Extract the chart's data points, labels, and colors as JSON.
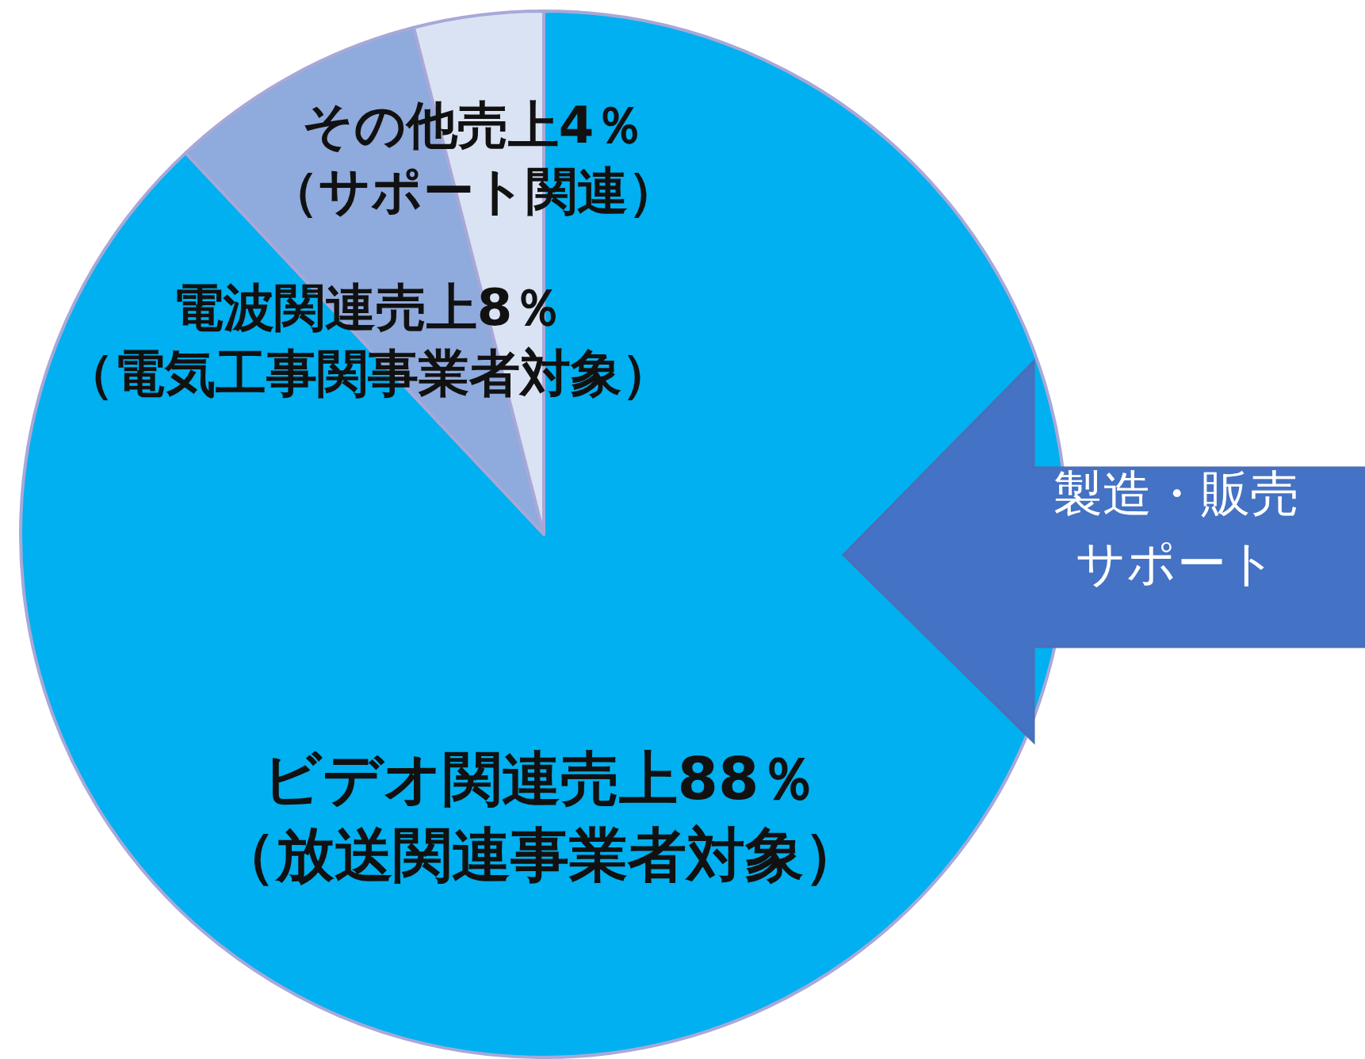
{
  "chart_data": {
    "type": "pie",
    "categories": [
      "ビデオ関連売上88％（放送関連事業者対象）",
      "電波関連売上8％（電気工事関事業者対象）",
      "その他売上4％（サポート関連）"
    ],
    "values": [
      88,
      8,
      4
    ],
    "colors": [
      "#00b0f0",
      "#8faadc",
      "#dae3f3"
    ],
    "annotations": [
      "製造・販売サポート"
    ],
    "legend": false
  }
}
